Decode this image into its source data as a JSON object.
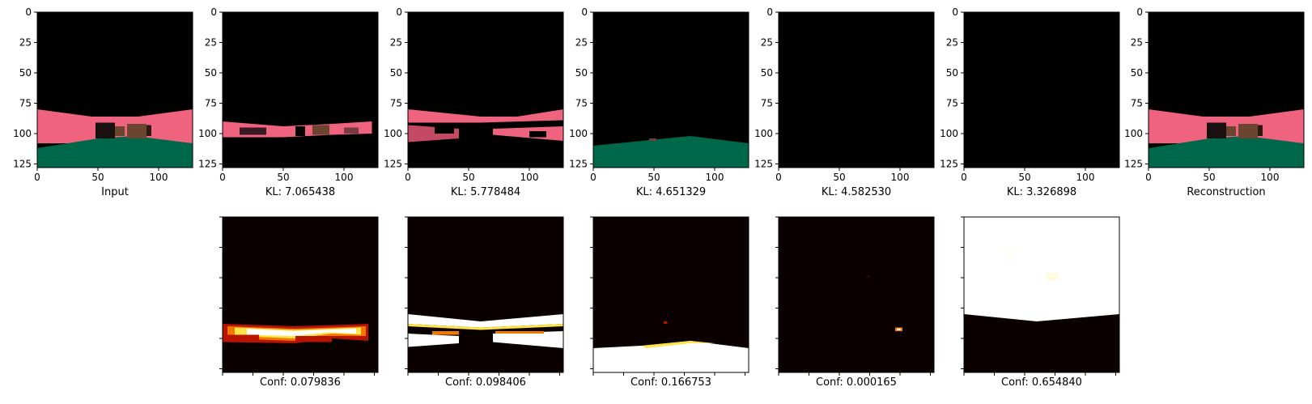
{
  "chart_data": {
    "type": "image-grid",
    "image_size": [
      128,
      128
    ],
    "axis_ticks": [
      "0",
      "25",
      "50",
      "75",
      "100",
      "125"
    ],
    "x_ticks": [
      "0",
      "50",
      "100"
    ],
    "colors": {
      "black": "#000000",
      "pink": "#f0637e",
      "green": "#00684a",
      "brown": "#6b4530",
      "heat_dark": "#0b0000",
      "heat_red": "#b81400",
      "heat_orange": "#f07a00",
      "heat_yellow": "#ffe34a",
      "heat_white": "#ffffff"
    },
    "top_row": [
      {
        "caption": "Input",
        "scene": "full"
      },
      {
        "caption": "KL: 7.065438",
        "scene": "band-narrow"
      },
      {
        "caption": "KL: 5.778484",
        "scene": "band-pink"
      },
      {
        "caption": "KL: 4.651329",
        "scene": "ground-only"
      },
      {
        "caption": "KL: 4.582530",
        "scene": "blank"
      },
      {
        "caption": "KL: 3.326898",
        "scene": "blank"
      },
      {
        "caption": "Reconstruction",
        "scene": "full"
      }
    ],
    "bottom_row": [
      {
        "caption": "Conf: 0.079836",
        "value": 0.079836
      },
      {
        "caption": "Conf: 0.098406",
        "value": 0.098406
      },
      {
        "caption": "Conf: 0.166753",
        "value": 0.166753
      },
      {
        "caption": "Conf: 0.000165",
        "value": 0.000165
      },
      {
        "caption": "Conf: 0.654840",
        "value": 0.65484
      }
    ]
  }
}
